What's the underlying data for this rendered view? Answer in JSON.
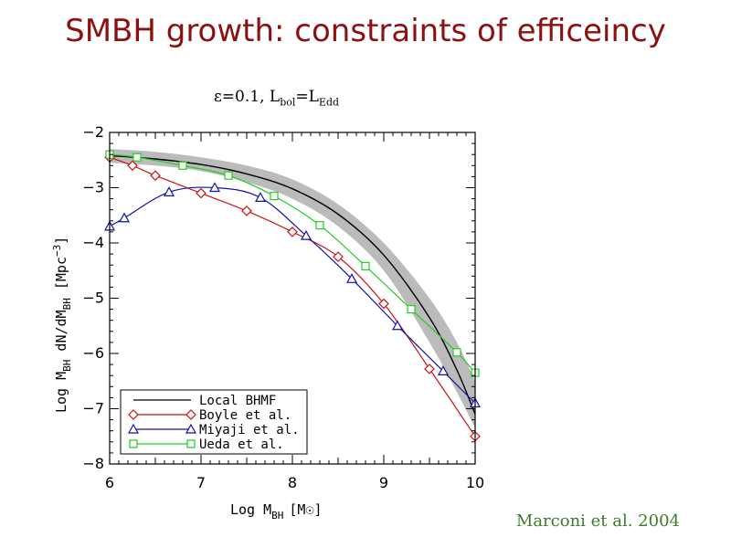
{
  "slide": {
    "title": "SMBH growth: constraints of efficeincy",
    "credit": "Marconi et al. 2004",
    "caption": {
      "eps": "ε=0.1, L",
      "sub1": "bol",
      "eq": "=L",
      "sub2": "Edd"
    }
  },
  "colors": {
    "title": "#8b1010",
    "credit": "#3c7a2a",
    "band": "#bbbbbb"
  },
  "chart_data": {
    "type": "line",
    "xlabel": {
      "main": "Log M",
      "sub": "BH",
      "unit": "[M☉]"
    },
    "ylabel": "Log M_BH dN/dM_BH [Mpc^-3]",
    "ylabel_parts": {
      "a": "Log M",
      "b": "BH",
      "c": " dN/dM",
      "d": "BH",
      "e": " [Mpc",
      "f": "−3",
      "g": "]"
    },
    "xlim": [
      6,
      10
    ],
    "ylim": [
      -8,
      -2
    ],
    "x_ticks": [
      6,
      7,
      8,
      9,
      10
    ],
    "y_ticks": [
      -2,
      -3,
      -4,
      -5,
      -6,
      -7,
      -8
    ],
    "y_tick_labels": [
      "−2",
      "−3",
      "−4",
      "−5",
      "−6",
      "−7",
      "−8"
    ],
    "band": {
      "x": [
        6.0,
        6.5,
        7.0,
        7.5,
        8.0,
        8.5,
        9.0,
        9.5,
        9.8,
        10.0
      ],
      "upper": [
        -2.3,
        -2.35,
        -2.45,
        -2.6,
        -2.85,
        -3.3,
        -4.0,
        -5.0,
        -5.8,
        -6.5
      ],
      "lower": [
        -2.55,
        -2.6,
        -2.7,
        -2.9,
        -3.2,
        -3.7,
        -4.5,
        -5.8,
        -6.7,
        -7.35
      ]
    },
    "series": [
      {
        "name": "Local BHMF",
        "color": "#000000",
        "marker": "none",
        "x": [
          6.0,
          6.5,
          7.0,
          7.5,
          8.0,
          8.5,
          9.0,
          9.5,
          9.8,
          10.0
        ],
        "y": [
          -2.42,
          -2.48,
          -2.58,
          -2.75,
          -3.02,
          -3.48,
          -4.22,
          -5.35,
          -6.3,
          -7.1
        ]
      },
      {
        "name": "Boyle et al.",
        "color": "#cc1111",
        "marker": "diamond",
        "x": [
          6.0,
          6.25,
          6.5,
          7.0,
          7.5,
          8.0,
          8.5,
          9.0,
          9.5,
          10.0
        ],
        "y": [
          -2.45,
          -2.6,
          -2.78,
          -3.1,
          -3.42,
          -3.8,
          -4.25,
          -5.1,
          -6.28,
          -7.5
        ]
      },
      {
        "name": "Miyaji et al.",
        "color": "#1111aa",
        "marker": "triangle",
        "x": [
          6.0,
          6.16,
          6.65,
          7.15,
          7.65,
          8.15,
          8.65,
          9.15,
          9.65,
          10.0
        ],
        "y": [
          -3.7,
          -3.55,
          -3.08,
          -3.0,
          -3.18,
          -3.87,
          -4.65,
          -5.5,
          -6.32,
          -6.9
        ]
      },
      {
        "name": "Ueda et al.",
        "color": "#22cc22",
        "marker": "square",
        "x": [
          6.0,
          6.3,
          6.8,
          7.3,
          7.8,
          8.3,
          8.8,
          9.3,
          9.8,
          10.0
        ],
        "y": [
          -2.4,
          -2.45,
          -2.6,
          -2.78,
          -3.15,
          -3.68,
          -4.42,
          -5.2,
          -5.98,
          -6.35
        ]
      }
    ],
    "legend": {
      "placement": "bottom-left"
    }
  }
}
